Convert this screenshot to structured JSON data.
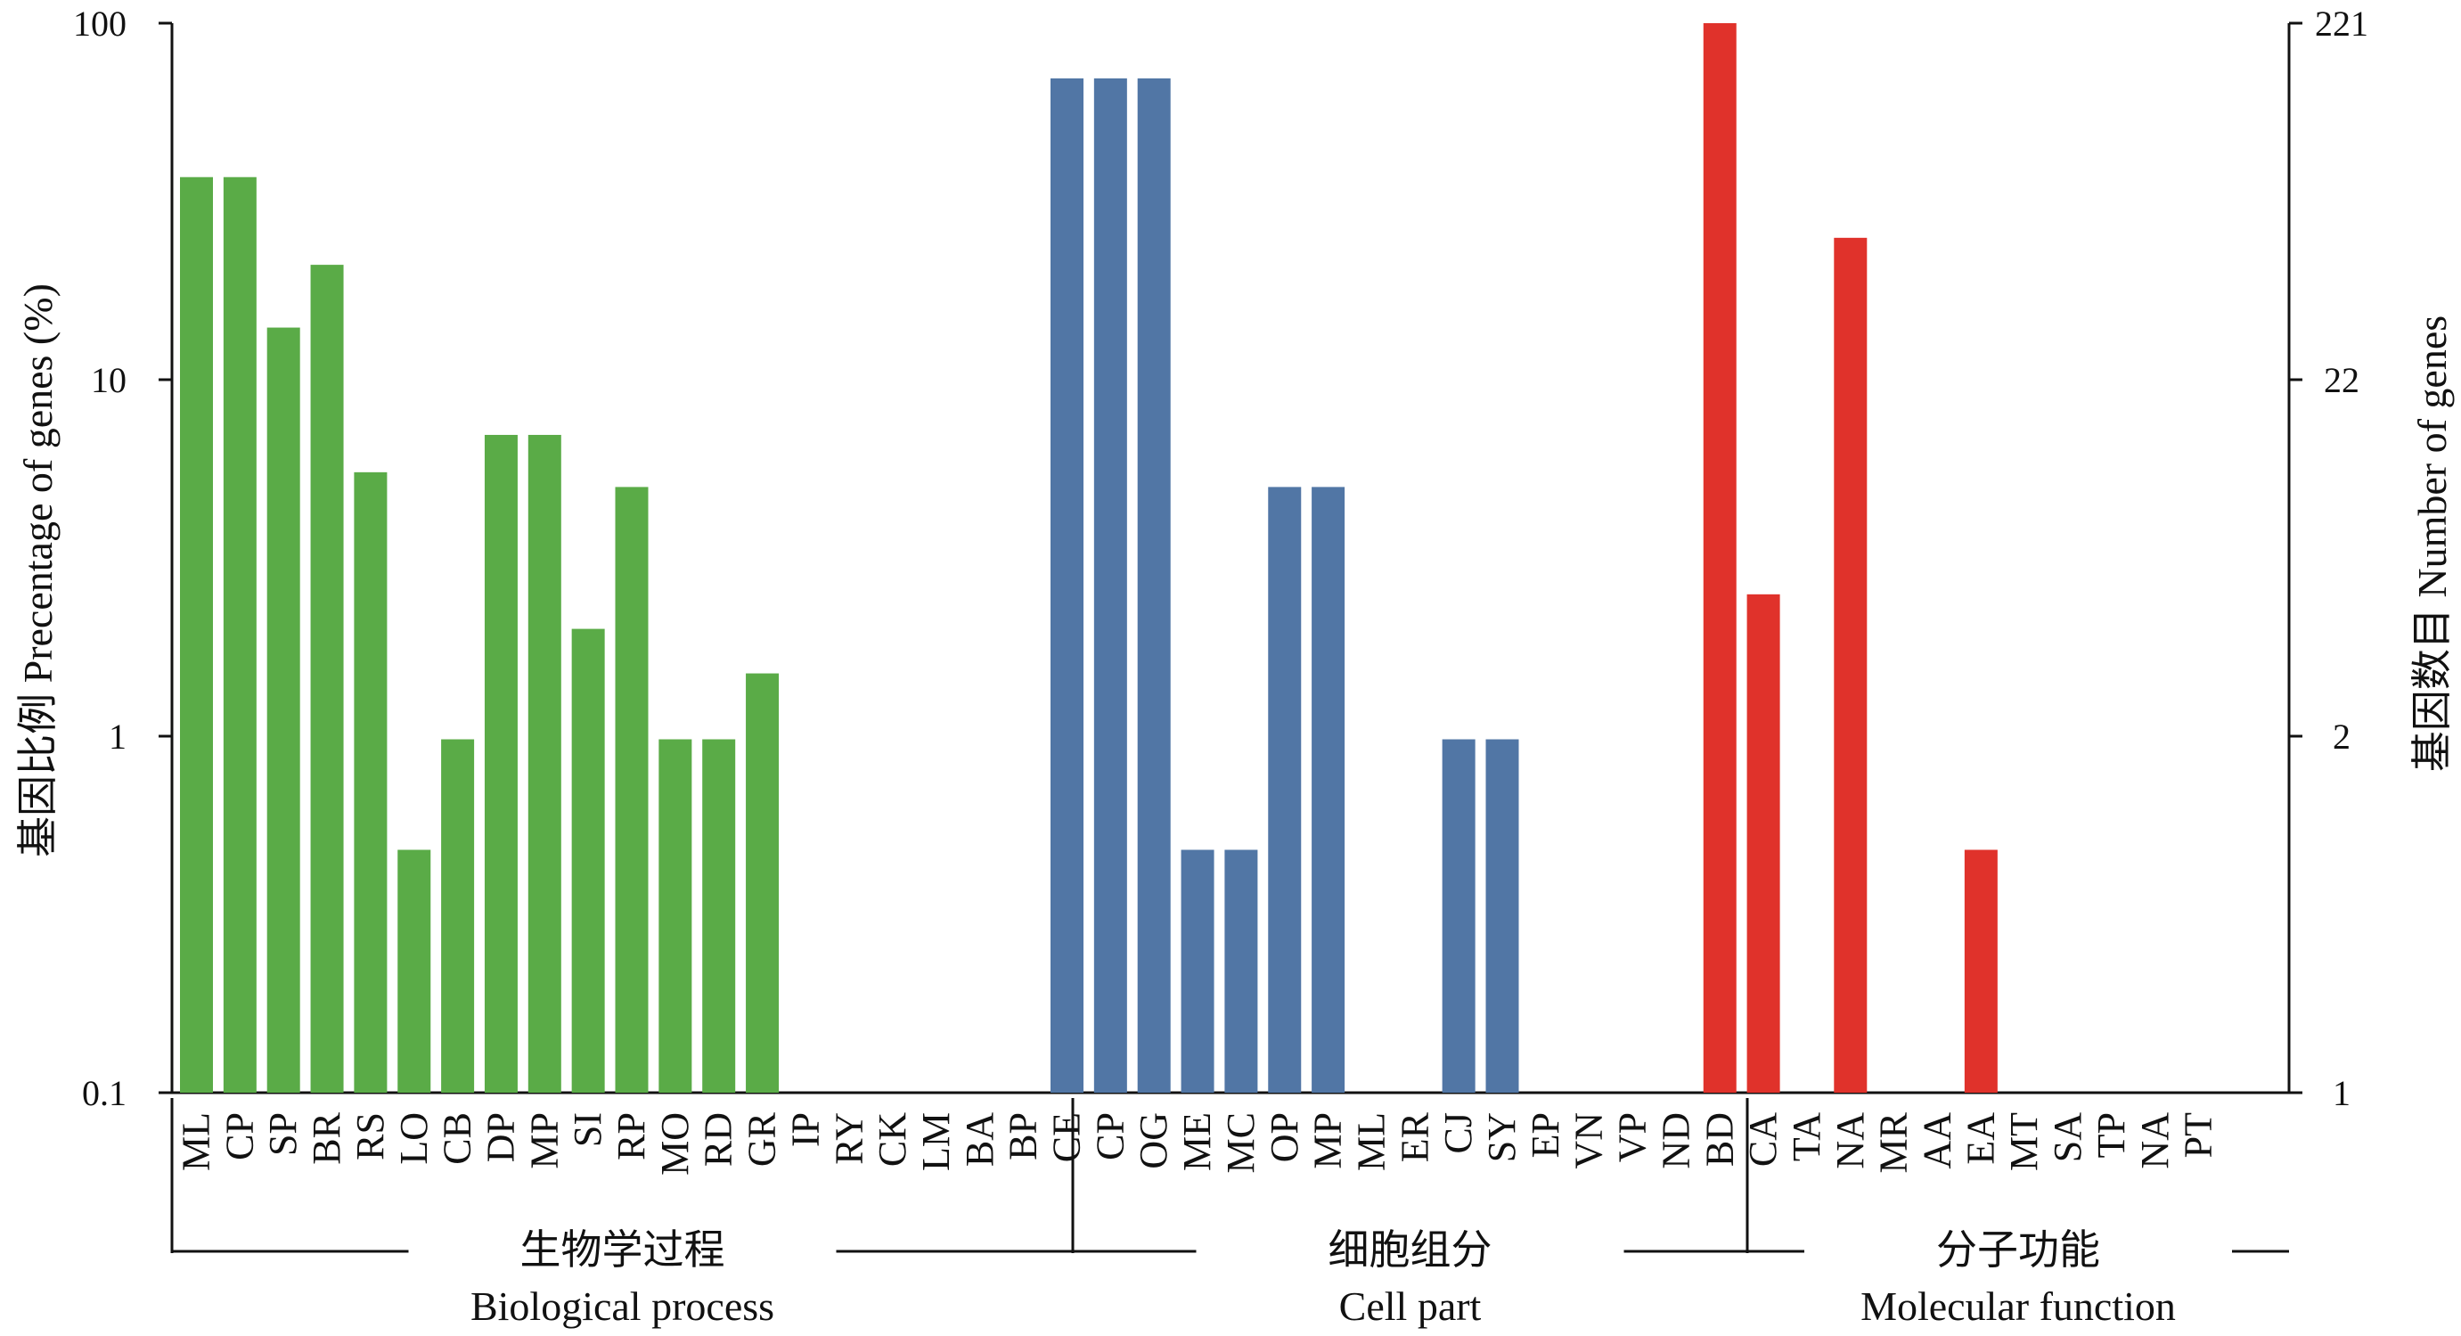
{
  "chart_data": {
    "type": "bar",
    "y_scale": "log",
    "ylim": [
      0.1,
      100
    ],
    "ylabel": "基因比例 Precentage of genes (%)",
    "y2label": "基因数目 Number of genes",
    "yticks": [
      {
        "value": 100,
        "label": "100"
      },
      {
        "value": 10,
        "label": "10"
      },
      {
        "value": 1,
        "label": "1"
      },
      {
        "value": 0.1,
        "label": "0.1"
      }
    ],
    "y2ticks": [
      {
        "value": 100,
        "label": "221"
      },
      {
        "value": 10,
        "label": "22"
      },
      {
        "value": 1,
        "label": "2"
      },
      {
        "value": 0.1,
        "label": "1"
      }
    ],
    "groups": [
      {
        "name_cn": "生物学过程",
        "name_en": "Biological process",
        "color": "#5aab47",
        "categories": [
          "ML",
          "CP",
          "SP",
          "BR",
          "RS",
          "LO",
          "CB",
          "DP",
          "MP",
          "SI",
          "RP",
          "MO",
          "RD",
          "GR",
          "IP",
          "RY",
          "CK",
          "LM",
          "BA",
          "BP"
        ],
        "values": [
          37,
          37,
          14,
          21,
          5.5,
          0.48,
          0.98,
          7,
          7,
          2,
          5,
          0.98,
          0.98,
          1.5,
          null,
          null,
          null,
          null,
          null,
          null
        ]
      },
      {
        "name_cn": "细胞组分",
        "name_en": "Cell part",
        "color": "#5176a5",
        "categories": [
          "CE",
          "CP",
          "OG",
          "ME",
          "MC",
          "OP",
          "MP",
          "ML",
          "ER",
          "CJ",
          "SY",
          "EP",
          "VN",
          "VP",
          "ND"
        ],
        "values": [
          70,
          70,
          70,
          0.48,
          0.48,
          5,
          5,
          null,
          null,
          0.98,
          0.98,
          null,
          null,
          null,
          null
        ]
      },
      {
        "name_cn": "分子功能",
        "name_en": "Molecular  function",
        "color": "#e0322b",
        "categories": [
          "BD",
          "CA",
          "TA",
          "NA",
          "MR",
          "AA",
          "EA",
          "MT",
          "SA",
          "TP",
          "NA",
          "PT"
        ],
        "values": [
          100,
          2.5,
          null,
          25,
          null,
          null,
          0.48,
          null,
          null,
          null,
          null,
          null
        ]
      }
    ]
  }
}
